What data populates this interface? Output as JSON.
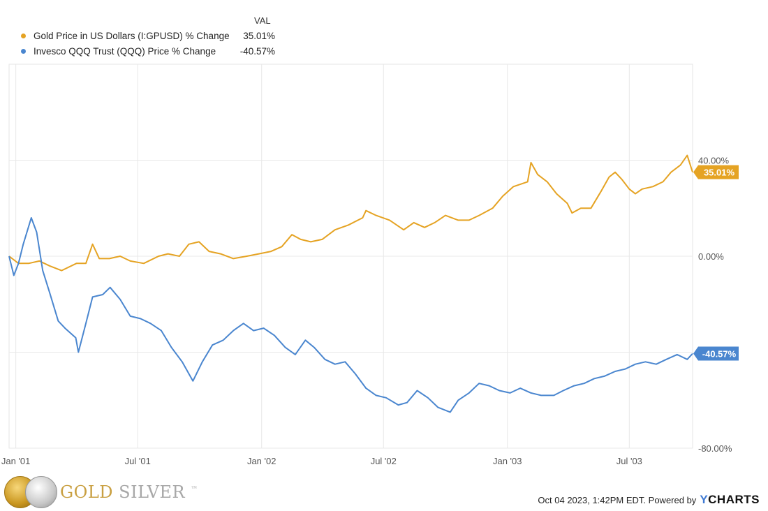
{
  "legend": {
    "header": "VAL",
    "items": [
      {
        "name": "Gold Price in US Dollars (I:GPUSD) % Change",
        "value": "35.01%",
        "color": "#e5a323"
      },
      {
        "name": "Invesco QQQ Trust (QQQ) Price % Change",
        "value": "-40.57%",
        "color": "#4a86cf"
      }
    ]
  },
  "chart_data": {
    "type": "line",
    "x_range": [
      "2000-12-22",
      "2003-10-03"
    ],
    "ylim": [
      -80,
      80
    ],
    "y_ticks": [
      {
        "value": 40,
        "label": "40.00%"
      },
      {
        "value": 0,
        "label": "0.00%"
      },
      {
        "value": -40,
        "label": "-40.00%"
      },
      {
        "value": -80,
        "label": "-80.00%"
      }
    ],
    "x_ticks": [
      {
        "date": "2001-01-01",
        "label": "Jan '01"
      },
      {
        "date": "2001-07-01",
        "label": "Jul '01"
      },
      {
        "date": "2002-01-01",
        "label": "Jan '02"
      },
      {
        "date": "2002-07-01",
        "label": "Jul '02"
      },
      {
        "date": "2003-01-01",
        "label": "Jan '03"
      },
      {
        "date": "2003-07-01",
        "label": "Jul '03"
      }
    ],
    "grid": true,
    "series": [
      {
        "name": "Gold Price in US Dollars (I:GPUSD) % Change",
        "color": "#e5a323",
        "end_label": "35.01%",
        "points": [
          [
            "2000-12-22",
            0
          ],
          [
            "2001-01-05",
            -3
          ],
          [
            "2001-01-20",
            -3
          ],
          [
            "2001-02-05",
            -2
          ],
          [
            "2001-02-20",
            -4
          ],
          [
            "2001-03-10",
            -6
          ],
          [
            "2001-04-01",
            -3
          ],
          [
            "2001-04-15",
            -3
          ],
          [
            "2001-04-25",
            5
          ],
          [
            "2001-05-05",
            -1
          ],
          [
            "2001-05-20",
            -1
          ],
          [
            "2001-06-05",
            0
          ],
          [
            "2001-06-20",
            -2
          ],
          [
            "2001-07-10",
            -3
          ],
          [
            "2001-08-01",
            0
          ],
          [
            "2001-08-15",
            1
          ],
          [
            "2001-09-01",
            0
          ],
          [
            "2001-09-15",
            5
          ],
          [
            "2001-09-30",
            6
          ],
          [
            "2001-10-15",
            2
          ],
          [
            "2001-11-01",
            1
          ],
          [
            "2001-11-20",
            -1
          ],
          [
            "2001-12-10",
            0
          ],
          [
            "2001-12-28",
            1
          ],
          [
            "2002-01-15",
            2
          ],
          [
            "2002-01-31",
            4
          ],
          [
            "2002-02-15",
            9
          ],
          [
            "2002-02-28",
            7
          ],
          [
            "2002-03-15",
            6
          ],
          [
            "2002-04-01",
            7
          ],
          [
            "2002-04-20",
            11
          ],
          [
            "2002-05-10",
            13
          ],
          [
            "2002-05-31",
            16
          ],
          [
            "2002-06-05",
            19
          ],
          [
            "2002-06-20",
            17
          ],
          [
            "2002-07-10",
            15
          ],
          [
            "2002-07-31",
            11
          ],
          [
            "2002-08-15",
            14
          ],
          [
            "2002-08-31",
            12
          ],
          [
            "2002-09-15",
            14
          ],
          [
            "2002-10-01",
            17
          ],
          [
            "2002-10-20",
            15
          ],
          [
            "2002-11-05",
            15
          ],
          [
            "2002-11-20",
            17
          ],
          [
            "2002-12-10",
            20
          ],
          [
            "2002-12-25",
            25
          ],
          [
            "2003-01-10",
            29
          ],
          [
            "2003-01-31",
            31
          ],
          [
            "2003-02-05",
            39
          ],
          [
            "2003-02-15",
            34
          ],
          [
            "2003-03-01",
            31
          ],
          [
            "2003-03-15",
            26
          ],
          [
            "2003-03-31",
            22
          ],
          [
            "2003-04-07",
            18
          ],
          [
            "2003-04-20",
            20
          ],
          [
            "2003-05-05",
            20
          ],
          [
            "2003-05-20",
            27
          ],
          [
            "2003-06-01",
            33
          ],
          [
            "2003-06-10",
            35
          ],
          [
            "2003-06-20",
            32
          ],
          [
            "2003-07-01",
            28
          ],
          [
            "2003-07-10",
            26
          ],
          [
            "2003-07-20",
            28
          ],
          [
            "2003-08-05",
            29
          ],
          [
            "2003-08-20",
            31
          ],
          [
            "2003-09-01",
            35
          ],
          [
            "2003-09-15",
            38
          ],
          [
            "2003-09-25",
            42
          ],
          [
            "2003-10-03",
            35.01
          ]
        ]
      },
      {
        "name": "Invesco QQQ Trust (QQQ) Price % Change",
        "color": "#4a86cf",
        "end_label": "-40.57%",
        "points": [
          [
            "2000-12-22",
            0
          ],
          [
            "2000-12-29",
            -8
          ],
          [
            "2001-01-05",
            -3
          ],
          [
            "2001-01-12",
            5
          ],
          [
            "2001-01-24",
            16
          ],
          [
            "2001-02-01",
            10
          ],
          [
            "2001-02-10",
            -6
          ],
          [
            "2001-02-20",
            -15
          ],
          [
            "2001-03-05",
            -27
          ],
          [
            "2001-03-15",
            -30
          ],
          [
            "2001-03-31",
            -34
          ],
          [
            "2001-04-04",
            -40
          ],
          [
            "2001-04-15",
            -28
          ],
          [
            "2001-04-25",
            -17
          ],
          [
            "2001-05-10",
            -16
          ],
          [
            "2001-05-21",
            -13
          ],
          [
            "2001-06-05",
            -18
          ],
          [
            "2001-06-20",
            -25
          ],
          [
            "2001-07-05",
            -26
          ],
          [
            "2001-07-20",
            -28
          ],
          [
            "2001-08-05",
            -31
          ],
          [
            "2001-08-20",
            -38
          ],
          [
            "2001-09-05",
            -44
          ],
          [
            "2001-09-21",
            -52
          ],
          [
            "2001-10-05",
            -44
          ],
          [
            "2001-10-20",
            -37
          ],
          [
            "2001-11-05",
            -35
          ],
          [
            "2001-11-20",
            -31
          ],
          [
            "2001-12-05",
            -28
          ],
          [
            "2001-12-20",
            -31
          ],
          [
            "2002-01-04",
            -30
          ],
          [
            "2002-01-20",
            -33
          ],
          [
            "2002-02-05",
            -38
          ],
          [
            "2002-02-20",
            -41
          ],
          [
            "2002-03-07",
            -35
          ],
          [
            "2002-03-20",
            -38
          ],
          [
            "2002-04-05",
            -43
          ],
          [
            "2002-04-20",
            -45
          ],
          [
            "2002-05-05",
            -44
          ],
          [
            "2002-05-20",
            -49
          ],
          [
            "2002-06-05",
            -55
          ],
          [
            "2002-06-20",
            -58
          ],
          [
            "2002-07-05",
            -59
          ],
          [
            "2002-07-23",
            -62
          ],
          [
            "2002-08-05",
            -61
          ],
          [
            "2002-08-20",
            -56
          ],
          [
            "2002-09-05",
            -59
          ],
          [
            "2002-09-20",
            -63
          ],
          [
            "2002-10-08",
            -65
          ],
          [
            "2002-10-20",
            -60
          ],
          [
            "2002-11-05",
            -57
          ],
          [
            "2002-11-20",
            -53
          ],
          [
            "2002-12-05",
            -54
          ],
          [
            "2002-12-20",
            -56
          ],
          [
            "2003-01-05",
            -57
          ],
          [
            "2003-01-20",
            -55
          ],
          [
            "2003-02-05",
            -57
          ],
          [
            "2003-02-20",
            -58
          ],
          [
            "2003-03-11",
            -58
          ],
          [
            "2003-03-25",
            -56
          ],
          [
            "2003-04-10",
            -54
          ],
          [
            "2003-04-25",
            -53
          ],
          [
            "2003-05-10",
            -51
          ],
          [
            "2003-05-25",
            -50
          ],
          [
            "2003-06-10",
            -48
          ],
          [
            "2003-06-25",
            -47
          ],
          [
            "2003-07-10",
            -45
          ],
          [
            "2003-07-25",
            -44
          ],
          [
            "2003-08-10",
            -45
          ],
          [
            "2003-08-25",
            -43
          ],
          [
            "2003-09-10",
            -41
          ],
          [
            "2003-09-25",
            -43
          ],
          [
            "2003-10-03",
            -40.57
          ]
        ]
      }
    ]
  },
  "branding": {
    "logo_gold": "GOLD",
    "logo_silver": "SILVER",
    "trademark": "™"
  },
  "footer": {
    "timestamp": "Oct 04 2023, 1:42PM EDT. Powered by",
    "brand_y": "Y",
    "brand_rest": "CHARTS"
  }
}
